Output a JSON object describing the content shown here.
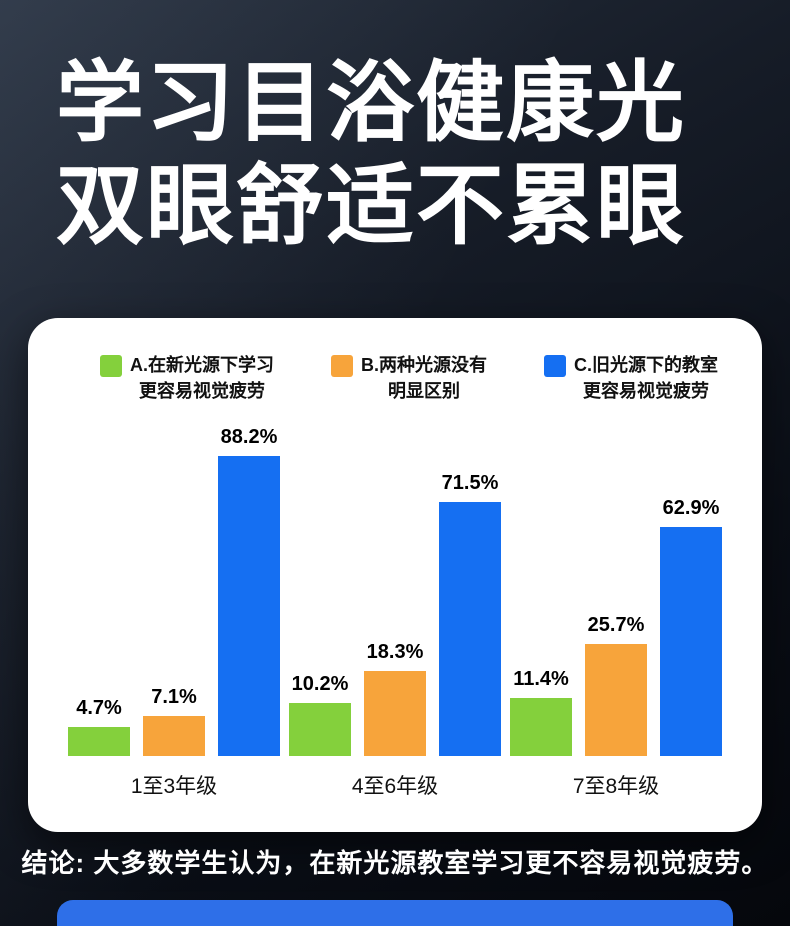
{
  "page": {
    "title_line1": "学习目浴健康光",
    "title_line2": "双眼舒适不累眼",
    "conclusion": "结论: 大多数学生认为，在新光源教室学习更不容易视觉疲劳。"
  },
  "colors": {
    "background_top": "#27303e",
    "background_bottom": "#05070c",
    "card": "#ffffff",
    "title_text": "#ffffff",
    "conclusion_text": "#ffffff",
    "bottom_bar": "#2e6fe8",
    "series_green": "#84d03c",
    "series_orange": "#f7a43b",
    "series_blue": "#156ff2"
  },
  "chart_data": {
    "type": "bar",
    "categories": [
      "1至3年级",
      "4至6年级",
      "7至8年级"
    ],
    "series": [
      {
        "name": "A.在新光源下学习更容易视觉疲劳",
        "legend_lines": [
          "A.在新光源下学习",
          "更容易视觉疲劳"
        ],
        "color": "#84d03c",
        "values": [
          4.7,
          10.2,
          11.4
        ]
      },
      {
        "name": "B.两种光源没有明显区别",
        "legend_lines": [
          "B.两种光源没有",
          "明显区别"
        ],
        "color": "#f7a43b",
        "values": [
          7.1,
          18.3,
          25.7
        ]
      },
      {
        "name": "C.旧光源下的教室更容易视觉疲劳",
        "legend_lines": [
          "C.旧光源下的教室",
          "更容易视觉疲劳"
        ],
        "color": "#156ff2",
        "values": [
          88.2,
          71.5,
          62.9
        ]
      }
    ],
    "value_suffix": "%",
    "ylim": [
      0,
      100
    ],
    "grid": false,
    "legend_position": "top"
  }
}
